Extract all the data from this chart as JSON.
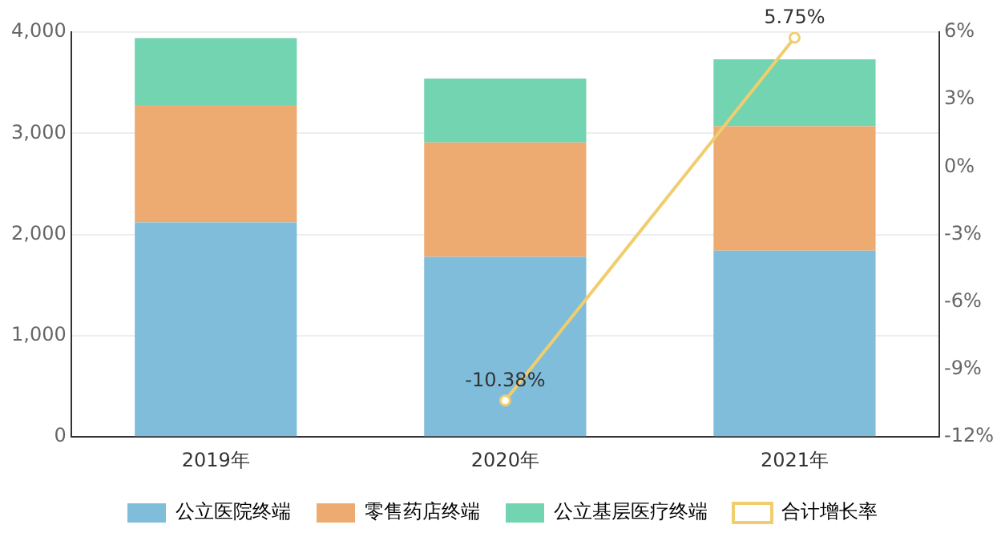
{
  "chart_data": {
    "type": "bar",
    "stacked": true,
    "categories": [
      "2019年",
      "2020年",
      "2021年"
    ],
    "series": [
      {
        "name": "公立医院终端",
        "color": "#7fbddb",
        "values": [
          2120,
          1780,
          1840
        ]
      },
      {
        "name": "零售药店终端",
        "color": "#edab72",
        "values": [
          1160,
          1130,
          1230
        ]
      },
      {
        "name": "公立基层医疗终端",
        "color": "#73d4b1",
        "values": [
          660,
          630,
          660
        ]
      },
      {
        "name": "合计增长率",
        "type": "line",
        "axis": "y2",
        "color": "#f0cd6e",
        "marker": "circle",
        "values": [
          null,
          -10.38,
          5.75
        ],
        "value_labels": [
          null,
          "-10.38%",
          "5.75%"
        ]
      }
    ],
    "ylim": [
      0,
      4000
    ],
    "yticks": [
      0,
      {
        "value": 1000,
        "label": "1,000"
      },
      {
        "value": 2000,
        "label": "2,000"
      },
      {
        "value": 3000,
        "label": "3,000"
      },
      {
        "value": 4000,
        "label": "4,000"
      }
    ],
    "y2lim": [
      -12,
      6
    ],
    "y2ticks": [
      {
        "value": -12,
        "label": "-12%"
      },
      {
        "value": -9,
        "label": "-9%"
      },
      {
        "value": -6,
        "label": "-6%"
      },
      {
        "value": -3,
        "label": "-3%"
      },
      {
        "value": 0,
        "label": "0%"
      },
      {
        "value": 3,
        "label": "3%"
      },
      {
        "value": 6,
        "label": "6%"
      }
    ],
    "grid": "y",
    "legend": "bottom"
  }
}
